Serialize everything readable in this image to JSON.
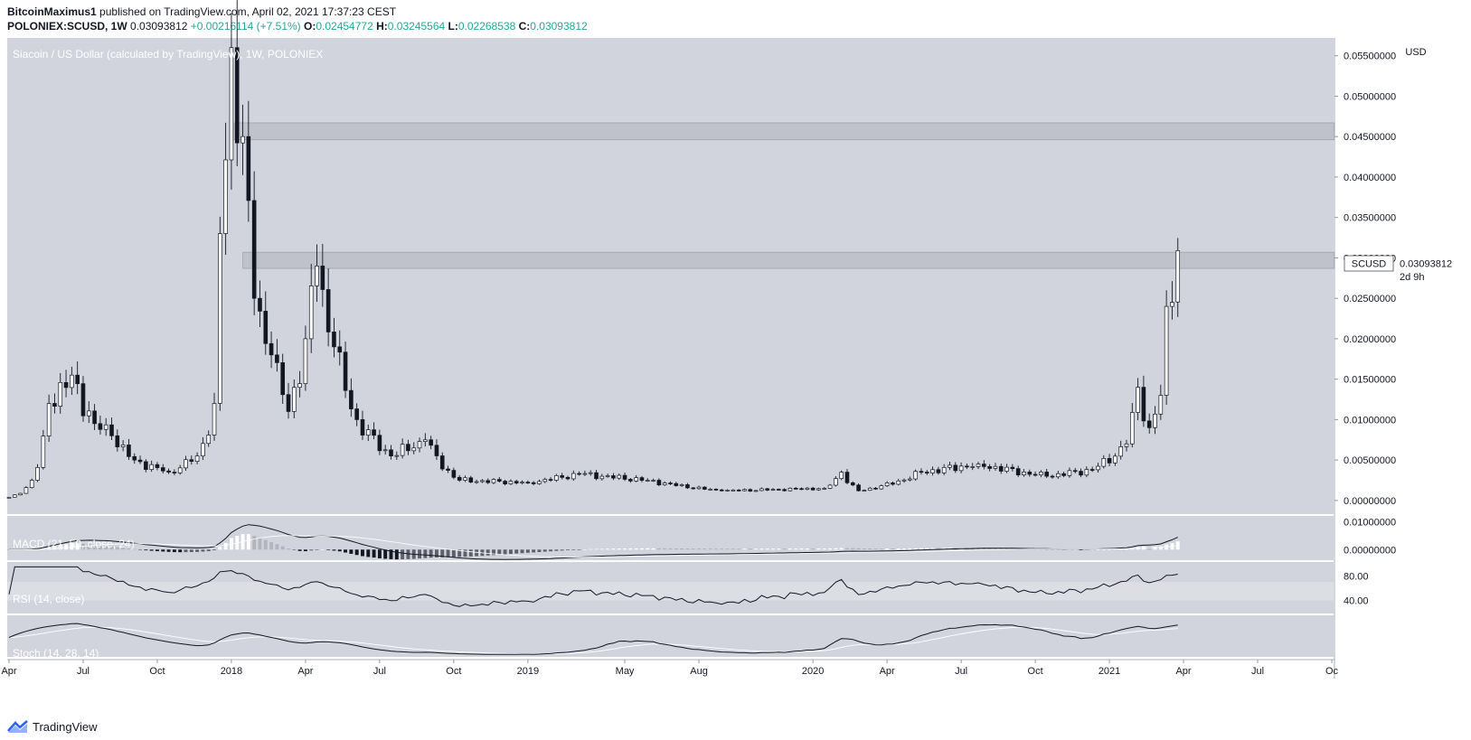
{
  "header": {
    "author": "BitcoinMaximus1",
    "published_text": "published on TradingView.com, April 02, 2021 17:37:23 CEST",
    "symbol": "POLONIEX:SCUSD, 1W",
    "last": "0.03093812",
    "change": "+0.00216114 (+7.51%)",
    "o_label": "O:",
    "o_value": "0.02454772",
    "h_label": "H:",
    "h_value": "0.03245564",
    "l_label": "L:",
    "l_value": "0.02268538",
    "c_label": "C:",
    "c_value": "0.03093812"
  },
  "colors": {
    "background": "#d1d4dc",
    "zone": "#bfc2ca",
    "candle_up": "#ffffff",
    "candle_down": "#131722",
    "change_text": "#26a69a"
  },
  "footer": {
    "brand": "TradingView",
    "logo_icon": "tradingview-logo-icon"
  },
  "chart_data": {
    "type": "candlestick",
    "title": "Siacoin / US Dollar (calculated by TradingView), 1W, POLONIEX",
    "currency_label": "USD",
    "price_label": {
      "symbol": "SCUSD",
      "value": "0.03093812",
      "countdown": "2d 9h"
    },
    "y_ticks": [
      "0.05500000",
      "0.05000000",
      "0.04500000",
      "0.04000000",
      "0.03500000",
      "0.03000000",
      "0.02500000",
      "0.02000000",
      "0.01500000",
      "0.01000000",
      "0.00500000",
      "0.00000000"
    ],
    "y_tick_values": [
      0.055,
      0.05,
      0.045,
      0.04,
      0.035,
      0.03,
      0.025,
      0.02,
      0.015,
      0.01,
      0.005,
      0.0
    ],
    "ylim": [
      -0.0018,
      0.0572
    ],
    "x_ticks": [
      "Apr",
      "Jul",
      "Oct",
      "2018",
      "Apr",
      "Jul",
      "Oct",
      "2019",
      "May",
      "Aug",
      "2020",
      "Apr",
      "Jul",
      "Oct",
      "2021",
      "Apr",
      "Jul",
      "Oc"
    ],
    "x_tick_weeks": [
      0,
      13,
      26,
      39,
      52,
      65,
      78,
      91,
      108,
      121,
      141,
      154,
      167,
      180,
      193,
      206,
      219,
      232
    ],
    "resistance_zones": [
      [
        0.0446,
        0.0467
      ],
      [
        0.0287,
        0.0307
      ]
    ],
    "candles_start": "2017-04-03",
    "key_points": [
      {
        "week": 0,
        "close": 0.0004
      },
      {
        "week": 4,
        "close": 0.0025
      },
      {
        "week": 7,
        "close": 0.012
      },
      {
        "week": 11,
        "close": 0.0155
      },
      {
        "week": 15,
        "close": 0.0095
      },
      {
        "week": 18,
        "close": 0.008
      },
      {
        "week": 22,
        "close": 0.005
      },
      {
        "week": 28,
        "close": 0.0035
      },
      {
        "week": 33,
        "close": 0.0055
      },
      {
        "week": 36,
        "close": 0.012
      },
      {
        "week": 37,
        "close": 0.033
      },
      {
        "week": 39,
        "close": 0.056
      },
      {
        "week": 41,
        "close": 0.045
      },
      {
        "week": 43,
        "close": 0.025
      },
      {
        "week": 46,
        "close": 0.018
      },
      {
        "week": 49,
        "close": 0.011
      },
      {
        "week": 52,
        "close": 0.02
      },
      {
        "week": 54,
        "close": 0.029
      },
      {
        "week": 57,
        "close": 0.019
      },
      {
        "week": 61,
        "close": 0.01
      },
      {
        "week": 67,
        "close": 0.0055
      },
      {
        "week": 73,
        "close": 0.0075
      },
      {
        "week": 79,
        "close": 0.0025
      },
      {
        "week": 91,
        "close": 0.0022
      },
      {
        "week": 100,
        "close": 0.0033
      },
      {
        "week": 112,
        "close": 0.0025
      },
      {
        "week": 125,
        "close": 0.0012
      },
      {
        "week": 143,
        "close": 0.0015
      },
      {
        "week": 146,
        "close": 0.0035
      },
      {
        "week": 149,
        "close": 0.0012
      },
      {
        "week": 160,
        "close": 0.0035
      },
      {
        "week": 170,
        "close": 0.0045
      },
      {
        "week": 182,
        "close": 0.003
      },
      {
        "week": 190,
        "close": 0.0038
      },
      {
        "week": 196,
        "close": 0.007
      },
      {
        "week": 198,
        "close": 0.014
      },
      {
        "week": 200,
        "close": 0.009
      },
      {
        "week": 202,
        "close": 0.013
      },
      {
        "week": 203,
        "close": 0.024
      },
      {
        "week": 204,
        "close": 0.0245
      },
      {
        "week": 205,
        "close": 0.0309
      }
    ],
    "last_candle": {
      "open": 0.02454772,
      "high": 0.03245564,
      "low": 0.02268538,
      "close": 0.03093812
    },
    "indicators": [
      {
        "name": "MACD",
        "title": "MACD (21, 50, close, 24)",
        "y_ticks": [
          "0.01000000",
          "0.00000000"
        ],
        "y_tick_values": [
          0.01,
          0.0
        ]
      },
      {
        "name": "RSI",
        "title": "RSI (14, close)",
        "y_ticks": [
          "80.00",
          "40.00"
        ],
        "y_tick_values": [
          80,
          40
        ],
        "band": [
          40,
          70
        ]
      },
      {
        "name": "Stoch",
        "title": "Stoch (14, 28, 14)",
        "y_ticks": [],
        "y_tick_values": []
      }
    ]
  }
}
